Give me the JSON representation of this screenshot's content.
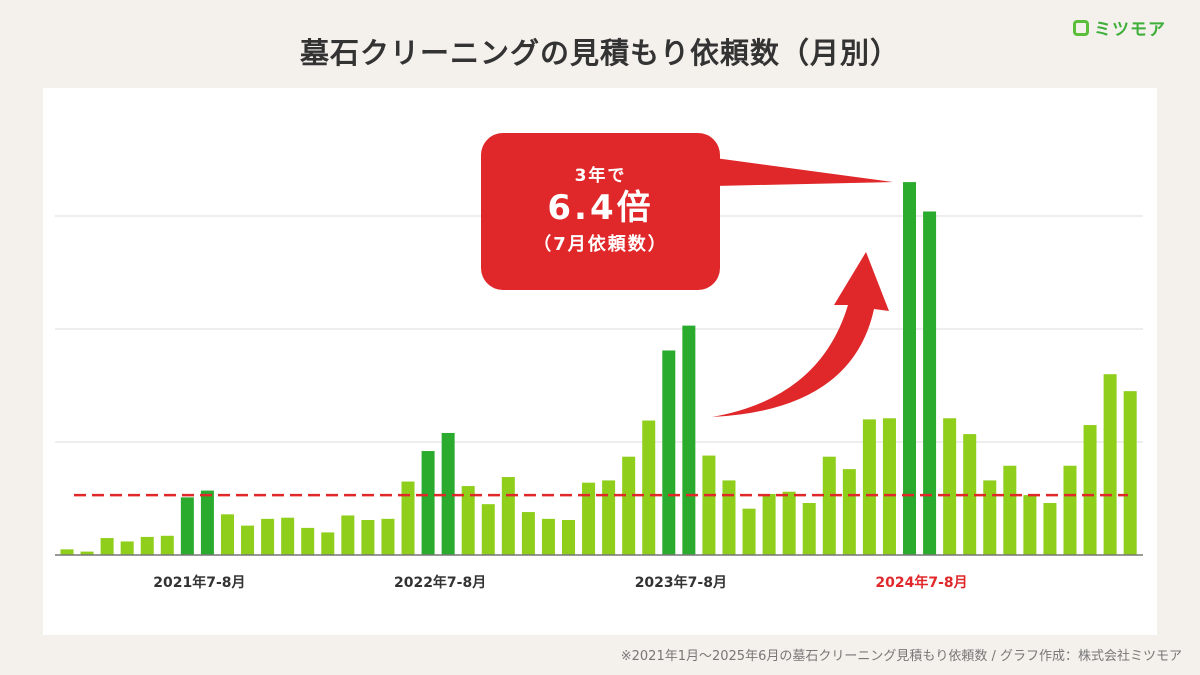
{
  "header": {
    "title": "墓石クリーニングの見積もり依頼数（月別）",
    "logo_text": "ミツモア"
  },
  "footnote": "※2021年1月〜2025年6月の墓石クリーニング見積もり依頼数 / グラフ作成：株式会社ミツモア",
  "callout": {
    "line1": "3年で",
    "line2": "6.4倍",
    "line3": "（7月依頼数）"
  },
  "colors": {
    "bar": "#8fce1a",
    "bar_highlight": "#2aab2e",
    "accent_red": "#e0282a",
    "background": "#f4f1ec"
  },
  "chart_data": {
    "type": "bar",
    "title": "墓石クリーニングの見積もり依頼数（月別）",
    "xlabel": "",
    "ylabel": "",
    "y_tick_labels": "none printed (relative scale, gridline interval = 1)",
    "ylim": [
      0,
      4
    ],
    "grid": true,
    "x_start": "2021-01",
    "x_end": "2025-06",
    "tick_labels": [
      {
        "label": "2021年7-8月",
        "months": [
          "2021-07",
          "2021-08"
        ],
        "highlight": false
      },
      {
        "label": "2022年7-8月",
        "months": [
          "2022-07",
          "2022-08"
        ],
        "highlight": false
      },
      {
        "label": "2023年7-8月",
        "months": [
          "2023-07",
          "2023-08"
        ],
        "highlight": false
      },
      {
        "label": "2024年7-8月",
        "months": [
          "2024-07",
          "2024-08"
        ],
        "highlight": true
      }
    ],
    "values": [
      0.05,
      0.03,
      0.15,
      0.12,
      0.16,
      0.17,
      0.51,
      0.57,
      0.36,
      0.26,
      0.32,
      0.33,
      0.24,
      0.2,
      0.35,
      0.31,
      0.32,
      0.65,
      0.92,
      1.08,
      0.61,
      0.45,
      0.69,
      0.38,
      0.32,
      0.31,
      0.64,
      0.66,
      0.87,
      1.19,
      1.81,
      2.03,
      0.88,
      0.66,
      0.41,
      0.54,
      0.56,
      0.46,
      0.87,
      0.76,
      1.2,
      1.21,
      3.3,
      3.04,
      1.21,
      1.07,
      0.66,
      0.79,
      0.53,
      0.46,
      0.79,
      1.15,
      1.6,
      1.45
    ],
    "highlighted_months": [
      "2021-07",
      "2021-08",
      "2022-07",
      "2022-08",
      "2023-07",
      "2023-08",
      "2024-07",
      "2024-08"
    ],
    "reference_line": {
      "style": "dashed",
      "color": "#e0282a",
      "value": 0.53
    },
    "annotation": "3年で 6.4倍（7月依頼数）"
  }
}
